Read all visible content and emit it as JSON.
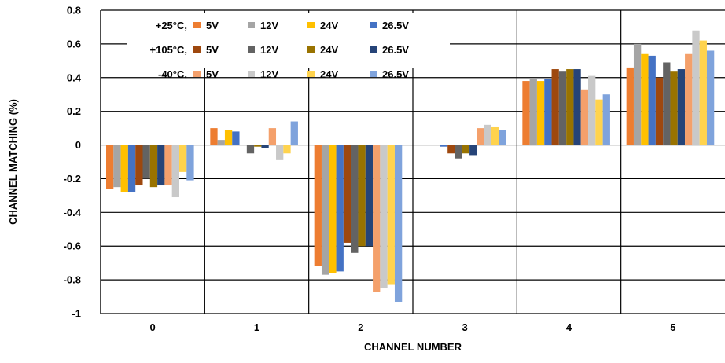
{
  "chart_data": {
    "type": "bar",
    "title": "",
    "xlabel": "CHANNEL NUMBER",
    "ylabel": "CHANNEL MATCHING (%)",
    "categories": [
      "0",
      "1",
      "2",
      "3",
      "4",
      "5"
    ],
    "ylim": [
      -1,
      0.8
    ],
    "yticks": [
      {
        "value": 0.8,
        "label": "0.8"
      },
      {
        "value": 0.6,
        "label": "0.6"
      },
      {
        "value": 0.4,
        "label": "0.4"
      },
      {
        "value": 0.2,
        "label": "0.2"
      },
      {
        "value": 0,
        "label": "0"
      },
      {
        "value": -0.2,
        "label": "-0.2"
      },
      {
        "value": -0.4,
        "label": "-0.4"
      },
      {
        "value": -0.6,
        "label": "-0.6"
      },
      {
        "value": -0.8,
        "label": "-0.8"
      },
      {
        "value": -1,
        "label": "-1"
      }
    ],
    "grid": true,
    "legend_placement": "top-left inside plot",
    "legend_groups": [
      {
        "temp": "+25°C,",
        "series_start": 0
      },
      {
        "temp": "+105°C,",
        "series_start": 4
      },
      {
        "temp": "-40°C,",
        "series_start": 8
      }
    ],
    "series": [
      {
        "name": "5V",
        "color": "#ED7D31",
        "values": [
          -0.26,
          0.1,
          -0.72,
          0.0,
          0.38,
          0.46
        ]
      },
      {
        "name": "12V",
        "color": "#A5A5A5",
        "values": [
          -0.25,
          0.03,
          -0.77,
          0.0,
          0.39,
          0.6
        ]
      },
      {
        "name": "24V",
        "color": "#FFC000",
        "values": [
          -0.28,
          0.09,
          -0.76,
          0.0,
          0.38,
          0.54
        ]
      },
      {
        "name": "26.5V",
        "color": "#4472C4",
        "values": [
          -0.28,
          0.08,
          -0.75,
          -0.01,
          0.39,
          0.53
        ]
      },
      {
        "name": "5V",
        "color": "#9E480E",
        "values": [
          -0.24,
          0.0,
          -0.58,
          -0.05,
          0.45,
          0.4
        ]
      },
      {
        "name": "12V",
        "color": "#636363",
        "values": [
          -0.2,
          -0.05,
          -0.64,
          -0.08,
          0.44,
          0.49
        ]
      },
      {
        "name": "24V",
        "color": "#997300",
        "values": [
          -0.25,
          -0.01,
          -0.6,
          -0.05,
          0.45,
          0.44
        ]
      },
      {
        "name": "26.5V",
        "color": "#264478",
        "values": [
          -0.24,
          -0.02,
          -0.6,
          -0.06,
          0.45,
          0.45
        ]
      },
      {
        "name": "5V",
        "color": "#F4A06B",
        "values": [
          -0.24,
          0.1,
          -0.87,
          0.1,
          0.33,
          0.54
        ]
      },
      {
        "name": "12V",
        "color": "#C9C9C9",
        "values": [
          -0.31,
          -0.09,
          -0.85,
          0.12,
          0.41,
          0.68
        ]
      },
      {
        "name": "24V",
        "color": "#FFD34D",
        "values": [
          -0.16,
          -0.05,
          -0.83,
          0.11,
          0.27,
          0.62
        ]
      },
      {
        "name": "26.5V",
        "color": "#7FA3DC",
        "values": [
          -0.21,
          0.14,
          -0.93,
          0.09,
          0.3,
          0.56
        ]
      }
    ]
  }
}
